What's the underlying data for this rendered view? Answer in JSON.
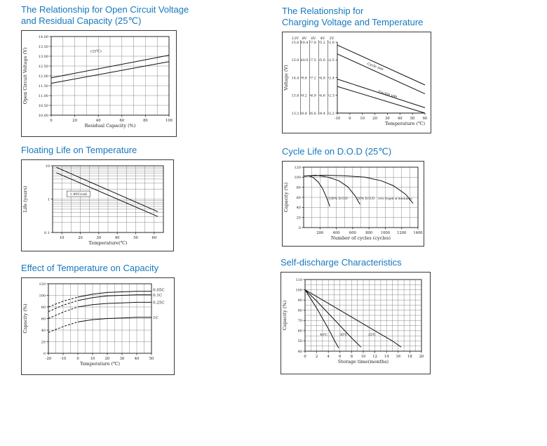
{
  "page": {
    "background": "#ffffff",
    "accent_color": "#1778be"
  },
  "panels": [
    {
      "title_lines": [
        "The Relationship for Open Circuit Voltage",
        "and Residual Capacity (25℃)"
      ]
    },
    {
      "title_lines": [
        "The Relationship for",
        "Charging Voltage and Temperature"
      ]
    },
    {
      "title_lines": [
        "Floating Life on Temperature"
      ]
    },
    {
      "title_lines": [
        "Cycle Life on D.O.D (25℃)"
      ]
    },
    {
      "title_lines": [
        "Effect of Temperature on Capacity"
      ]
    },
    {
      "title_lines": [
        "Self-discharge Characteristics"
      ]
    }
  ],
  "chart_data": [
    {
      "type": "line",
      "title": "The Relationship for Open Circuit Voltage and Residual Capacity (25℃)",
      "xlabel": "Residual Capacity (%)",
      "ylabel": "Open Circuit Voltage (V)",
      "xlim": [
        0,
        100
      ],
      "ylim": [
        10,
        14
      ],
      "x_ticks": [
        0,
        20,
        40,
        60,
        80,
        100
      ],
      "x_tick_labels": [
        "0",
        "20",
        "40",
        "60",
        "80",
        "100"
      ],
      "y_ticks": [
        10,
        10.5,
        11,
        11.5,
        12,
        12.5,
        13,
        13.5,
        14
      ],
      "y_tick_labels": [
        "10.00",
        "10.50",
        "11.00",
        "11.50",
        "12.00",
        "12.50",
        "13.00",
        "13.50",
        "14.00"
      ],
      "x_grid": [
        10,
        20,
        30,
        40,
        50,
        60,
        70,
        80,
        90
      ],
      "y_grid": [
        10.5,
        11,
        11.5,
        12,
        12.5,
        13,
        13.5
      ],
      "series": [
        {
          "name": "ocv-upper",
          "x": [
            0,
            100
          ],
          "y": [
            11.9,
            13.05
          ]
        },
        {
          "name": "ocv-lower",
          "x": [
            0,
            100
          ],
          "y": [
            11.62,
            12.72
          ]
        }
      ],
      "annotations": [
        {
          "text": "(25℃)",
          "x": 38,
          "y": 13.25,
          "fs": 5
        }
      ]
    },
    {
      "type": "line",
      "title": "The Relationship for Charging Voltage and Temperature",
      "xlabel": "Temperature (℃)",
      "xlabel_pos": "right",
      "ylabel": "Voltage (V)",
      "xlim": [
        -10,
        60
      ],
      "ylim": [
        13.2,
        15.6
      ],
      "frame": false,
      "x_ticks": [
        -10,
        0,
        10,
        20,
        30,
        40,
        50,
        60
      ],
      "x_tick_labels": [
        "-10",
        "0",
        "10",
        "20",
        "30",
        "40",
        "50",
        "60"
      ],
      "y_ticks": [
        15.6,
        15.0,
        14.4,
        13.8,
        13.2
      ],
      "y_tick_labels": [
        "",
        "",
        "",
        "",
        ""
      ],
      "volt_table": {
        "headers": [
          "12V",
          "8V",
          "6V",
          "4V",
          "2V"
        ],
        "rows": [
          [
            "15.6",
            "10.4",
            "7.8",
            "5.2",
            "2.6"
          ],
          [
            "15.0",
            "10.0",
            "7.5",
            "5.0",
            "2.5"
          ],
          [
            "14.4",
            "9.6",
            "7.2",
            "4.8",
            "2.4"
          ],
          [
            "13.8",
            "9.2",
            "6.9",
            "4.6",
            "2.3"
          ],
          [
            "13.2",
            "8.8",
            "6.6",
            "4.4",
            "2.2"
          ]
        ],
        "row_values": [
          15.6,
          15.0,
          14.4,
          13.8,
          13.2
        ]
      },
      "series": [
        {
          "name": "cycle-use-upper",
          "x": [
            -10,
            60
          ],
          "y": [
            15.5,
            14.15
          ]
        },
        {
          "name": "cycle-use-lower",
          "x": [
            -10,
            60
          ],
          "y": [
            15.2,
            13.85
          ]
        },
        {
          "name": "trickle-use-upper",
          "x": [
            -10,
            60
          ],
          "y": [
            14.35,
            13.38
          ]
        },
        {
          "name": "trickle-use-lower",
          "x": [
            -10,
            60
          ],
          "y": [
            14.1,
            13.2
          ]
        }
      ],
      "annotations": [
        {
          "text": "Cycle use",
          "x": 20,
          "y": 14.78,
          "rot": 20,
          "fs": 5
        },
        {
          "text": "Trickle use",
          "x": 30,
          "y": 13.84,
          "rot": 14,
          "fs": 5
        }
      ]
    },
    {
      "type": "line",
      "title": "Floating Life on Temperature",
      "xlabel": "Temperature(℃)",
      "ylabel": "Life (years)",
      "xlim": [
        5,
        65
      ],
      "ylim": [
        0.1,
        10
      ],
      "yscale": "log",
      "x_ticks": [
        10,
        20,
        30,
        40,
        50,
        60
      ],
      "x_tick_labels": [
        "10",
        "20",
        "30",
        "40",
        "50",
        "60"
      ],
      "y_ticks": [
        0.1,
        1,
        10
      ],
      "y_tick_labels": [
        "0.1",
        "1",
        "10"
      ],
      "x_grid": [
        10,
        15,
        20,
        25,
        30,
        35,
        40,
        45,
        50,
        55,
        60
      ],
      "y_grid": [
        0.2,
        0.3,
        0.4,
        0.5,
        0.6,
        0.7,
        0.8,
        0.9,
        1,
        2,
        3,
        4,
        5,
        6,
        7,
        8,
        9
      ],
      "series": [
        {
          "name": "float-life-upper",
          "x": [
            7,
            62
          ],
          "y": [
            9.0,
            0.42
          ]
        },
        {
          "name": "float-life-lower",
          "x": [
            7,
            62
          ],
          "y": [
            6.2,
            0.3
          ]
        }
      ],
      "annotations": [
        {
          "text": "1.90V/cell",
          "x": 19,
          "y": 1.4,
          "fs": 4.8,
          "box": true
        }
      ]
    },
    {
      "type": "line",
      "title": "Cycle Life on D.O.D (25℃)",
      "xlabel": "Number of cycles (cycles)",
      "ylabel": "Capacity (%)",
      "xlim": [
        0,
        1400
      ],
      "ylim": [
        0,
        120
      ],
      "x_ticks": [
        200,
        400,
        600,
        800,
        1000,
        1200,
        1400
      ],
      "x_tick_labels": [
        "200",
        "400",
        "600",
        "800",
        "1000",
        "1200",
        "1400"
      ],
      "y_ticks": [
        0,
        20,
        40,
        60,
        80,
        100,
        120
      ],
      "y_tick_labels": [
        "0",
        "20",
        "40",
        "60",
        "80",
        "100",
        "120"
      ],
      "x_grid": [
        100,
        200,
        300,
        400,
        500,
        600,
        700,
        800,
        900,
        1000,
        1100,
        1200,
        1300
      ],
      "y_grid": [
        20,
        40,
        60,
        80,
        100
      ],
      "series": [
        {
          "name": "dod-100",
          "x": [
            0,
            60,
            120,
            180,
            230,
            280,
            320
          ],
          "y": [
            102,
            103,
            99,
            90,
            78,
            60,
            42
          ]
        },
        {
          "name": "dod-50",
          "x": [
            0,
            150,
            300,
            430,
            540,
            630,
            690
          ],
          "y": [
            102,
            104,
            100,
            93,
            81,
            63,
            46
          ]
        },
        {
          "name": "dod-30",
          "x": [
            0,
            250,
            500,
            750,
            950,
            1100,
            1250,
            1340
          ],
          "y": [
            102,
            104,
            103,
            100,
            93,
            83,
            66,
            48
          ]
        }
      ],
      "annotations": [
        {
          "text": "100% D.O.D",
          "x": 420,
          "y": 58,
          "fs": 4.5
        },
        {
          "text": "50% D.O.D",
          "x": 760,
          "y": 58,
          "fs": 4.5
        },
        {
          "text": "30% Depth of discharge",
          "x": 1120,
          "y": 58,
          "fs": 4
        }
      ]
    },
    {
      "type": "line",
      "title": "Effect of Temperature on Capacity",
      "xlabel": "Temperature (℃)",
      "ylabel": "Capacity (%)",
      "xlim": [
        -20,
        50
      ],
      "ylim": [
        0,
        120
      ],
      "x_ticks": [
        -20,
        -10,
        0,
        10,
        20,
        30,
        40,
        50
      ],
      "x_tick_labels": [
        "-20",
        "-10",
        "0",
        "10",
        "20",
        "30",
        "40",
        "50"
      ],
      "y_ticks": [
        0,
        20,
        40,
        60,
        80,
        100,
        120
      ],
      "y_tick_labels": [
        "0",
        "20",
        "40",
        "60",
        "80",
        "100",
        "120"
      ],
      "x_grid": [
        -15,
        -10,
        -5,
        0,
        5,
        10,
        15,
        20,
        25,
        30,
        35,
        40,
        45
      ],
      "y_grid": [
        20,
        40,
        60,
        80,
        100
      ],
      "series": [
        {
          "name": "0.05C-low-temp",
          "x": [
            -20,
            -10,
            0
          ],
          "y": [
            80,
            90,
            97
          ],
          "dash": "3,2"
        },
        {
          "name": "0.05C",
          "x": [
            0,
            10,
            20,
            30,
            40,
            50
          ],
          "y": [
            97,
            102,
            105,
            106,
            107,
            107
          ]
        },
        {
          "name": "0.1C-low-temp",
          "x": [
            -20,
            -10,
            0
          ],
          "y": [
            72,
            83,
            91
          ],
          "dash": "3,2"
        },
        {
          "name": "0.1C",
          "x": [
            0,
            10,
            20,
            30,
            40,
            50
          ],
          "y": [
            91,
            96,
            99,
            100,
            101,
            101
          ]
        },
        {
          "name": "0.25C-low-temp",
          "x": [
            -20,
            -10,
            0
          ],
          "y": [
            60,
            71,
            80
          ],
          "dash": "3,2"
        },
        {
          "name": "0.25C",
          "x": [
            0,
            10,
            20,
            30,
            40,
            50
          ],
          "y": [
            80,
            84,
            86,
            87,
            88,
            88
          ]
        },
        {
          "name": "1C-low-temp",
          "x": [
            -20,
            -10,
            0
          ],
          "y": [
            36,
            46,
            54
          ],
          "dash": "3,2"
        },
        {
          "name": "1C",
          "x": [
            0,
            10,
            20,
            30,
            40,
            50
          ],
          "y": [
            54,
            58,
            60,
            61,
            62,
            62
          ]
        }
      ],
      "annotations": [
        {
          "text": "0.05C",
          "x": 51,
          "y": 109,
          "fs": 5.5,
          "anchor": "start"
        },
        {
          "text": "0.1C",
          "x": 51,
          "y": 100,
          "fs": 5.5,
          "anchor": "start"
        },
        {
          "text": "0.25C",
          "x": 51,
          "y": 87,
          "fs": 5.5,
          "anchor": "start"
        },
        {
          "text": "1C",
          "x": 51,
          "y": 61,
          "fs": 5.5,
          "anchor": "start"
        }
      ]
    },
    {
      "type": "line",
      "title": "Self-discharge Characteristics",
      "xlabel": "Storage time(months)",
      "ylabel": "Capacity (%)",
      "xlim": [
        0,
        20
      ],
      "ylim": [
        40,
        110
      ],
      "x_ticks": [
        0,
        2,
        4,
        6,
        8,
        10,
        12,
        14,
        16,
        18,
        20
      ],
      "x_tick_labels": [
        "0",
        "2",
        "4",
        "6",
        "8",
        "10",
        "12",
        "14",
        "16",
        "18",
        "20"
      ],
      "y_ticks": [
        40,
        50,
        60,
        70,
        80,
        90,
        100,
        110
      ],
      "y_tick_labels": [
        "40",
        "50",
        "60",
        "70",
        "80",
        "90",
        "100",
        "110"
      ],
      "x_grid": [
        1,
        2,
        3,
        4,
        5,
        6,
        7,
        8,
        9,
        10,
        11,
        12,
        13,
        14,
        15,
        16,
        17,
        18,
        19
      ],
      "y_grid": [
        45,
        50,
        55,
        60,
        65,
        70,
        75,
        80,
        85,
        90,
        95,
        100,
        105
      ],
      "series": [
        {
          "name": "40C-storage",
          "x": [
            0,
            1,
            2,
            3,
            4,
            5,
            5.8
          ],
          "y": [
            100,
            91,
            82,
            72,
            62,
            51,
            43
          ]
        },
        {
          "name": "30C-storage",
          "x": [
            0,
            2,
            4,
            6,
            8,
            9.6
          ],
          "y": [
            100,
            89,
            77,
            65,
            53,
            44
          ]
        },
        {
          "name": "25C-storage",
          "x": [
            0,
            3,
            6,
            9,
            12,
            15,
            16.5
          ],
          "y": [
            100,
            90,
            80,
            70,
            60,
            50,
            44
          ]
        }
      ],
      "annotations": [
        {
          "text": "40℃",
          "x": 3.2,
          "y": 56,
          "fs": 4.5
        },
        {
          "text": "30℃",
          "x": 6.6,
          "y": 56,
          "fs": 4.5
        },
        {
          "text": "25℃",
          "x": 11.5,
          "y": 56,
          "fs": 4.5
        }
      ]
    }
  ]
}
